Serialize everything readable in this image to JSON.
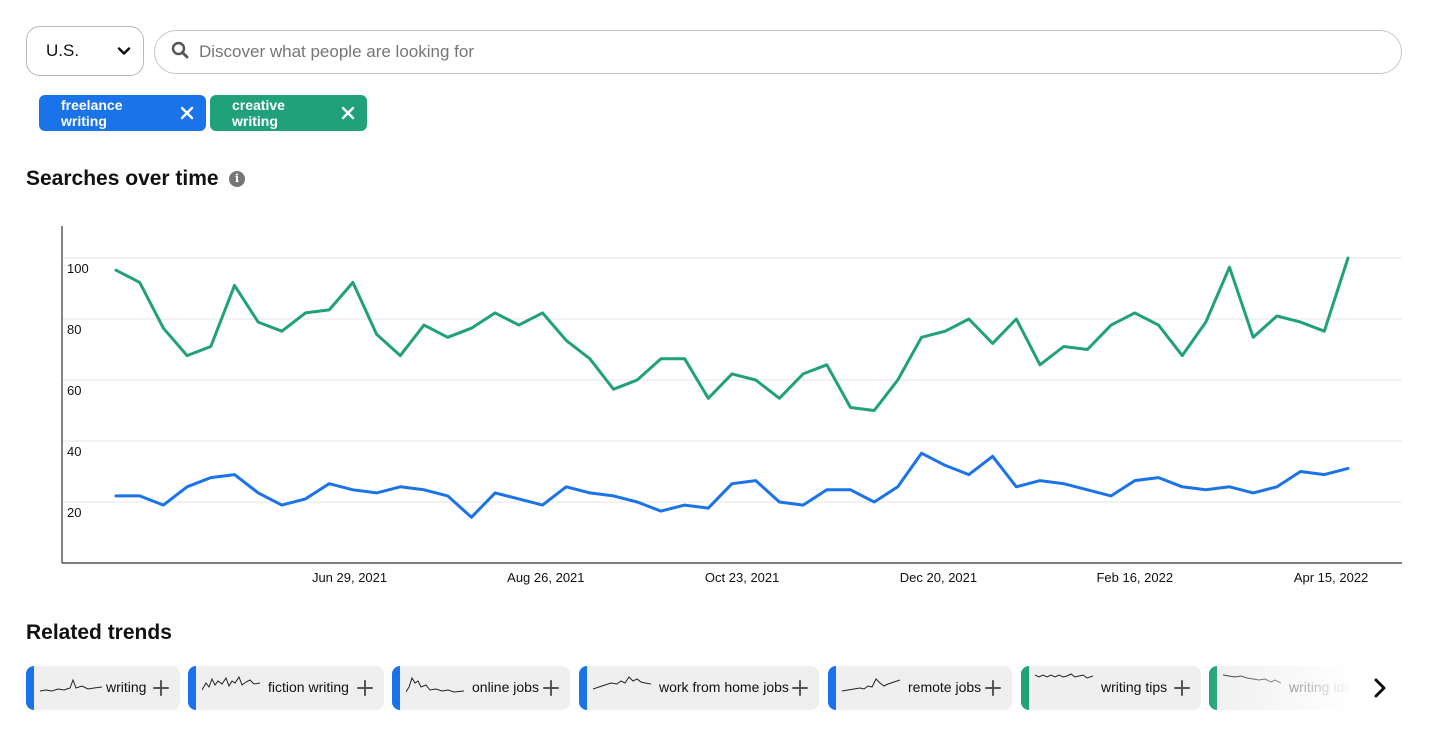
{
  "region": {
    "value": "U.S."
  },
  "search": {
    "placeholder": "Discover what people are looking for",
    "value": ""
  },
  "chips": [
    {
      "label": "freelance writing",
      "color": "#1A73E8"
    },
    {
      "label": "creative writing",
      "color": "#20A179"
    }
  ],
  "searches_section": {
    "title": "Searches over time"
  },
  "related_section": {
    "title": "Related trends"
  },
  "related_trends": [
    {
      "label": "writing",
      "color": "#1A73E8"
    },
    {
      "label": "fiction writing",
      "color": "#1A73E8"
    },
    {
      "label": "online jobs",
      "color": "#1A73E8"
    },
    {
      "label": "work from home jobs",
      "color": "#1A73E8"
    },
    {
      "label": "remote jobs",
      "color": "#1A73E8"
    },
    {
      "label": "writing tips",
      "color": "#20A179"
    },
    {
      "label": "writing ideas",
      "color": "#20A179"
    }
  ],
  "icons": {
    "region_chevron": "chevron-down-icon",
    "search": "search-icon",
    "chip_remove": "close-icon",
    "info": "info-icon",
    "add": "plus-icon",
    "next": "chevron-right-icon"
  },
  "chart_data": {
    "type": "line",
    "title": "",
    "xlabel": "",
    "ylabel": "",
    "ylim": [
      0,
      110
    ],
    "yticks": [
      20,
      40,
      60,
      80,
      100
    ],
    "x_tick_labels": [
      "Jun 29, 2021",
      "Aug 26, 2021",
      "Oct 23, 2021",
      "Dec 20, 2021",
      "Feb 16, 2022",
      "Apr 15, 2022"
    ],
    "x_start": "2021-04-21",
    "x_interval_days": 7,
    "grid": true,
    "series": [
      {
        "name": "creative writing",
        "color": "#20A179",
        "values": [
          96,
          92,
          77,
          68,
          71,
          91,
          79,
          76,
          82,
          83,
          92,
          75,
          68,
          78,
          74,
          77,
          82,
          78,
          82,
          73,
          67,
          57,
          60,
          67,
          67,
          54,
          62,
          60,
          54,
          62,
          65,
          51,
          50,
          60,
          74,
          76,
          80,
          72,
          80,
          65,
          71,
          70,
          78,
          82,
          78,
          68,
          79,
          97,
          74,
          81,
          79,
          76,
          100
        ]
      },
      {
        "name": "freelance writing",
        "color": "#1A73E8",
        "values": [
          22,
          22,
          19,
          25,
          28,
          29,
          23,
          19,
          21,
          26,
          24,
          23,
          25,
          24,
          22,
          15,
          23,
          21,
          19,
          25,
          23,
          22,
          20,
          17,
          19,
          18,
          26,
          27,
          20,
          19,
          24,
          24,
          20,
          25,
          36,
          32,
          29,
          35,
          25,
          27,
          26,
          24,
          22,
          27,
          28,
          25,
          24,
          25,
          23,
          25,
          30,
          29,
          31
        ]
      }
    ]
  }
}
